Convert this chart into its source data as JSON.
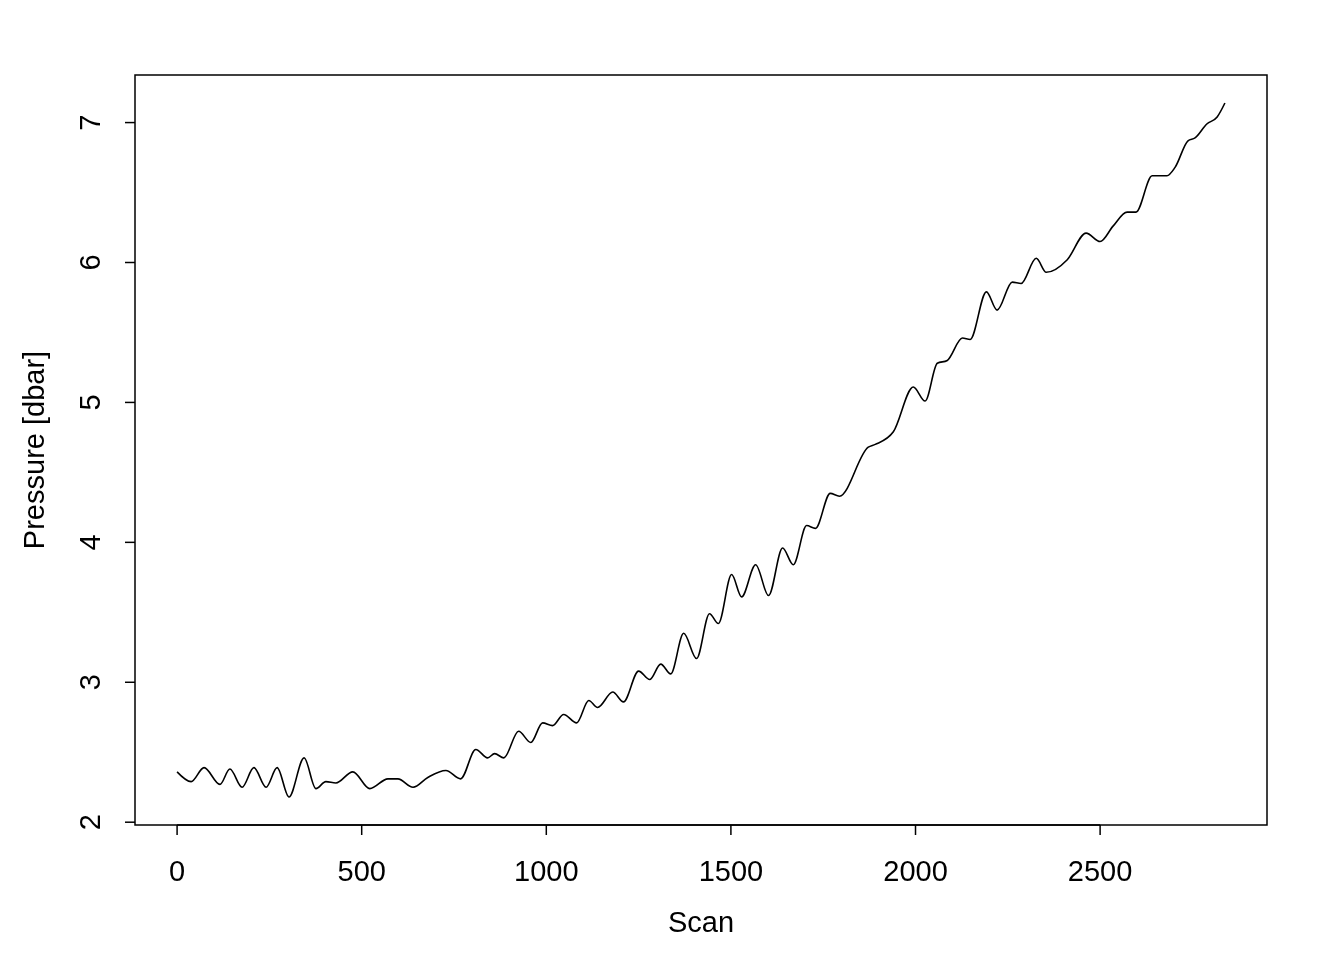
{
  "chart_data": {
    "type": "line",
    "xlabel": "Scan",
    "ylabel": "Pressure [dbar]",
    "xlim": [
      -114,
      2952
    ],
    "ylim": [
      1.98,
      7.34
    ],
    "xticks": [
      0,
      500,
      1000,
      1500,
      2000,
      2500
    ],
    "yticks": [
      2,
      3,
      4,
      5,
      6,
      7
    ],
    "grid": false,
    "marker": "none",
    "line_style": "solid",
    "x": [
      0,
      38,
      73,
      116,
      143,
      176,
      208,
      241,
      271,
      303,
      344,
      376,
      403,
      430,
      476,
      522,
      571,
      598,
      639,
      679,
      728,
      768,
      809,
      841,
      860,
      885,
      925,
      958,
      990,
      1017,
      1047,
      1082,
      1115,
      1139,
      1180,
      1209,
      1250,
      1280,
      1310,
      1337,
      1372,
      1407,
      1442,
      1466,
      1502,
      1529,
      1567,
      1602,
      1640,
      1669,
      1705,
      1729,
      1769,
      1794,
      1872,
      1891,
      1940,
      1994,
      2026,
      2059,
      2086,
      2127,
      2148,
      2192,
      2221,
      2262,
      2286,
      2327,
      2354,
      2411,
      2462,
      2500,
      2535,
      2573,
      2597,
      2641,
      2681,
      2703,
      2738,
      2757,
      2789,
      2817,
      2838
    ],
    "series": [
      {
        "color": "#000000",
        "values": [
          2.36,
          2.29,
          2.39,
          2.27,
          2.38,
          2.25,
          2.39,
          2.25,
          2.39,
          2.18,
          2.46,
          2.24,
          2.29,
          2.28,
          2.36,
          2.24,
          2.31,
          2.31,
          2.25,
          2.32,
          2.37,
          2.31,
          2.52,
          2.46,
          2.49,
          2.46,
          2.65,
          2.57,
          2.71,
          2.69,
          2.77,
          2.71,
          2.87,
          2.82,
          2.93,
          2.86,
          3.08,
          3.02,
          3.13,
          3.06,
          3.35,
          3.17,
          3.49,
          3.42,
          3.77,
          3.61,
          3.84,
          3.62,
          3.96,
          3.84,
          4.12,
          4.1,
          4.35,
          4.33,
          4.68,
          4.7,
          4.79,
          5.11,
          5.01,
          5.28,
          5.3,
          5.46,
          5.45,
          5.79,
          5.66,
          5.86,
          5.85,
          6.03,
          5.93,
          6.02,
          6.21,
          6.15,
          6.26,
          6.36,
          6.36,
          6.62,
          6.62,
          6.68,
          6.87,
          6.89,
          6.99,
          7.04,
          7.14
        ]
      }
    ]
  }
}
